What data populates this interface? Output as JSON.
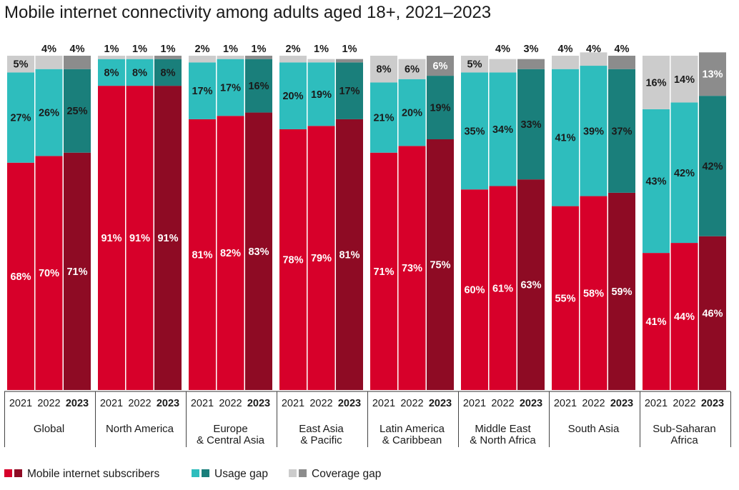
{
  "chart_data": {
    "type": "bar",
    "stacked": true,
    "title": "Mobile internet connectivity among adults aged 18+, 2021–2023",
    "years": [
      "2021",
      "2022",
      "2023"
    ],
    "regions": [
      {
        "name": [
          "Global"
        ],
        "subscribers": [
          68,
          70,
          71
        ],
        "usage_gap": [
          27,
          26,
          25
        ],
        "coverage_gap": [
          5,
          4,
          4
        ]
      },
      {
        "name": [
          "North America"
        ],
        "subscribers": [
          91,
          91,
          91
        ],
        "usage_gap": [
          8,
          8,
          8
        ],
        "coverage_gap": [
          1,
          1,
          1
        ]
      },
      {
        "name": [
          "Europe",
          "& Central Asia"
        ],
        "subscribers": [
          81,
          82,
          83
        ],
        "usage_gap": [
          17,
          17,
          16
        ],
        "coverage_gap": [
          2,
          1,
          1
        ]
      },
      {
        "name": [
          "East Asia",
          "& Pacific"
        ],
        "subscribers": [
          78,
          79,
          81
        ],
        "usage_gap": [
          20,
          19,
          17
        ],
        "coverage_gap": [
          2,
          1,
          1
        ]
      },
      {
        "name": [
          "Latin America",
          "& Caribbean"
        ],
        "subscribers": [
          71,
          73,
          75
        ],
        "usage_gap": [
          21,
          20,
          19
        ],
        "coverage_gap": [
          8,
          6,
          6
        ]
      },
      {
        "name": [
          "Middle East",
          "& North Africa"
        ],
        "subscribers": [
          60,
          61,
          63
        ],
        "usage_gap": [
          35,
          34,
          33
        ],
        "coverage_gap": [
          5,
          4,
          3
        ]
      },
      {
        "name": [
          "South Asia"
        ],
        "subscribers": [
          55,
          58,
          59
        ],
        "usage_gap": [
          41,
          39,
          37
        ],
        "coverage_gap": [
          4,
          4,
          4
        ]
      },
      {
        "name": [
          "Sub-Saharan",
          "Africa"
        ],
        "subscribers": [
          41,
          44,
          46
        ],
        "usage_gap": [
          43,
          42,
          42
        ],
        "coverage_gap": [
          16,
          14,
          13
        ]
      }
    ],
    "legend": [
      "Mobile internet subscribers",
      "Usage gap",
      "Coverage gap"
    ],
    "ylim": [
      0,
      100
    ],
    "value_suffix": "%",
    "colors": {
      "subscribers": [
        "#d7002a",
        "#8e0b24"
      ],
      "usage_gap": [
        "#2ebdbd",
        "#1a7f7b"
      ],
      "coverage_gap": [
        "#cccccc",
        "#8c8c8c"
      ]
    }
  }
}
